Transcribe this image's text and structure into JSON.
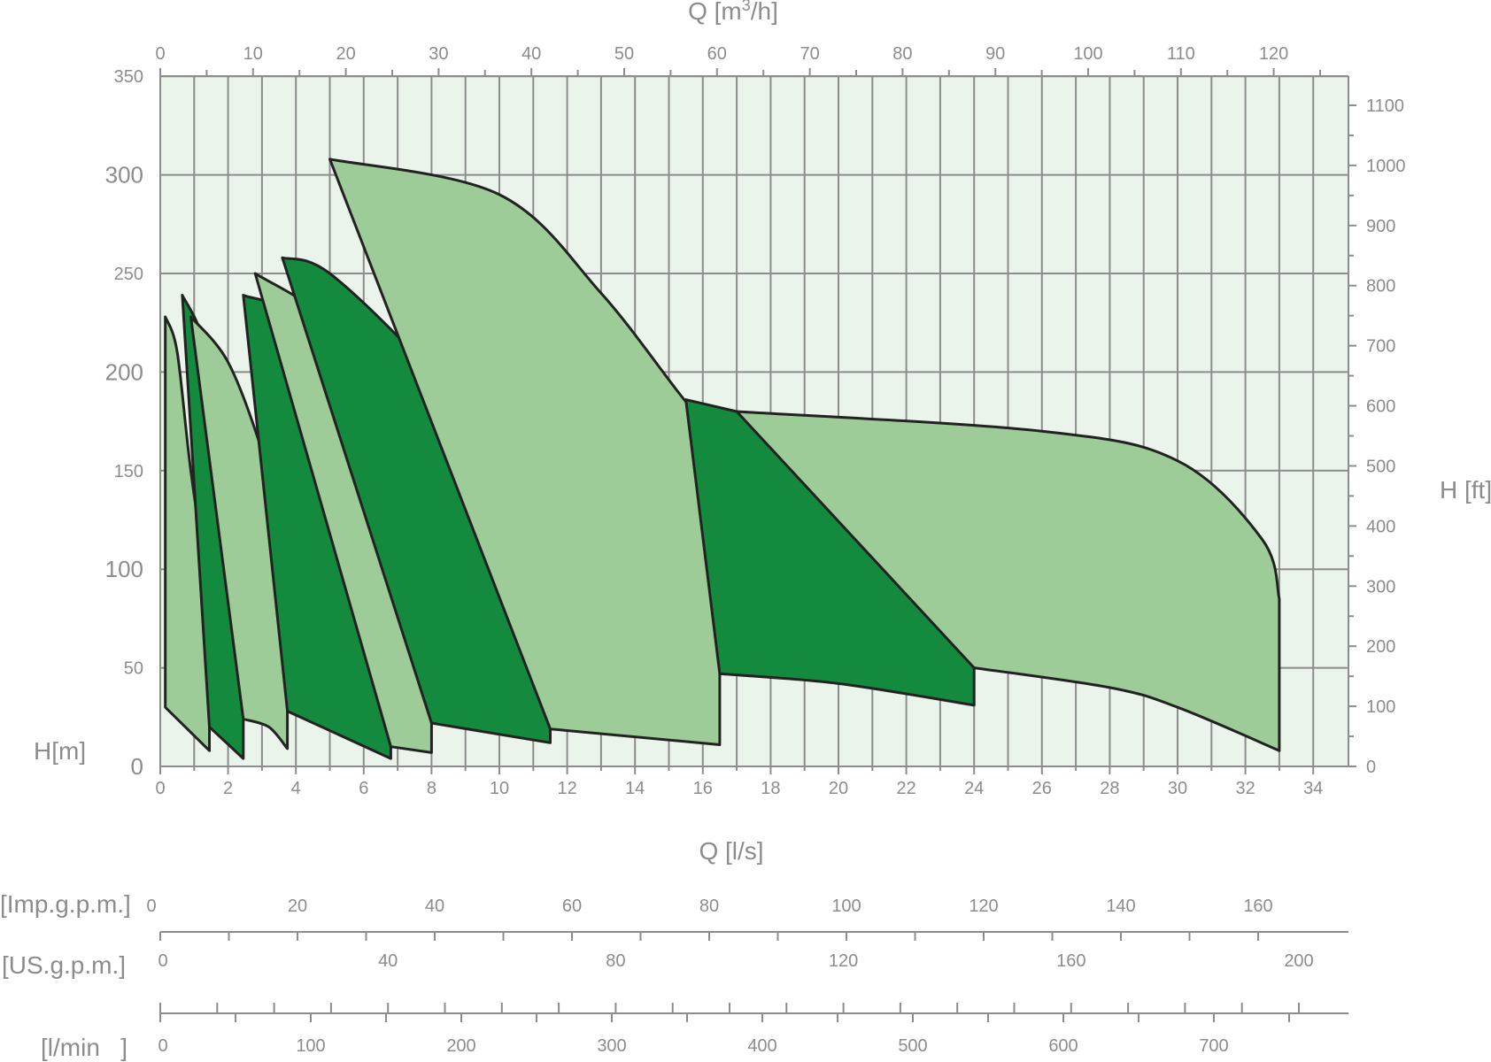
{
  "chart_data": {
    "type": "area",
    "title": "",
    "colors": {
      "plot_background": "#eaf4ea",
      "light_band": "#9dcc98",
      "dark_band": "#148a3e",
      "grid": "#8c8c8c",
      "outline": "#222222",
      "text": "#8c8c8c"
    },
    "grid": true,
    "axes": {
      "x_primary": {
        "label": "Q [l/s]",
        "range": [
          0,
          35
        ],
        "ticks": [
          0,
          2,
          4,
          6,
          8,
          10,
          12,
          14,
          16,
          18,
          20,
          22,
          24,
          26,
          28,
          30,
          32,
          34
        ]
      },
      "x_top": {
        "label": "Q [m3/h]",
        "label_main": "Q [m",
        "label_sup": "3",
        "label_end": "/h]",
        "ticks": [
          0,
          10,
          20,
          30,
          40,
          50,
          60,
          70,
          80,
          90,
          100,
          110,
          120
        ]
      },
      "y_left": {
        "label": "H[m]",
        "range": [
          0,
          350
        ],
        "ticks": [
          0,
          50,
          100,
          150,
          200,
          250,
          300,
          350
        ],
        "large_ticks": [
          0,
          100,
          200,
          300
        ]
      },
      "y_right": {
        "label": "H [ft]",
        "ticks": [
          0,
          100,
          200,
          300,
          400,
          500,
          600,
          700,
          800,
          900,
          1000,
          1100
        ]
      },
      "imp_gpm": {
        "label": "[Imp.g.p.m.]",
        "ticks": [
          0,
          20,
          40,
          60,
          80,
          100,
          120,
          140,
          160
        ]
      },
      "us_gpm": {
        "label": "[US.g.p.m.]",
        "ticks": [
          0,
          40,
          80,
          120,
          160,
          200
        ]
      },
      "l_min": {
        "label": "[l/min   ]",
        "ticks": [
          0,
          100,
          200,
          300,
          400,
          500,
          600,
          700
        ]
      }
    },
    "series": [
      {
        "shade": "light",
        "top": [
          [
            0.15,
            228
          ],
          [
            0.5,
            210
          ],
          [
            0.9,
            150
          ],
          [
            1.45,
            85
          ]
        ],
        "bottom": [
          [
            0.15,
            30
          ],
          [
            1.45,
            8
          ]
        ]
      },
      {
        "shade": "dark",
        "top": [
          [
            0.65,
            239
          ],
          [
            1.3,
            215
          ],
          [
            2.0,
            160
          ],
          [
            2.45,
            110
          ]
        ],
        "bottom": [
          [
            1.45,
            20
          ],
          [
            2.45,
            4
          ]
        ]
      },
      {
        "shade": "light",
        "top": [
          [
            0.9,
            228
          ],
          [
            2.0,
            205
          ],
          [
            3.0,
            160
          ],
          [
            3.75,
            110
          ]
        ],
        "bottom": [
          [
            2.45,
            24
          ],
          [
            3.2,
            20
          ],
          [
            3.75,
            9
          ]
        ]
      },
      {
        "shade": "dark",
        "top": [
          [
            2.45,
            239
          ],
          [
            4.0,
            225
          ],
          [
            6.0,
            160
          ],
          [
            6.8,
            110
          ]
        ],
        "bottom": [
          [
            3.75,
            28
          ],
          [
            6.8,
            4
          ]
        ]
      },
      {
        "shade": "light",
        "top": [
          [
            2.8,
            250
          ],
          [
            5.0,
            225
          ],
          [
            7.0,
            175
          ],
          [
            8.0,
            144
          ]
        ],
        "bottom": [
          [
            6.8,
            10
          ],
          [
            8.0,
            7
          ]
        ]
      },
      {
        "shade": "dark",
        "top": [
          [
            3.6,
            258
          ],
          [
            5.0,
            250
          ],
          [
            8.0,
            200
          ],
          [
            11.5,
            128
          ]
        ],
        "bottom": [
          [
            8.0,
            22
          ],
          [
            11.5,
            12
          ]
        ]
      },
      {
        "shade": "light",
        "top": [
          [
            5.0,
            308
          ],
          [
            10.0,
            290
          ],
          [
            13.0,
            240
          ],
          [
            15.5,
            185
          ],
          [
            16.5,
            168
          ]
        ],
        "bottom": [
          [
            11.5,
            19
          ],
          [
            16.5,
            11
          ]
        ]
      },
      {
        "shade": "dark",
        "top": [
          [
            15.5,
            186
          ],
          [
            17.0,
            180
          ],
          [
            20.0,
            168
          ],
          [
            24.0,
            132
          ]
        ],
        "bottom": [
          [
            16.5,
            47
          ],
          [
            20.0,
            42
          ],
          [
            24.0,
            31
          ]
        ]
      },
      {
        "shade": "light",
        "top": [
          [
            17.0,
            180
          ],
          [
            26.0,
            170
          ],
          [
            30.0,
            155
          ],
          [
            32.5,
            115
          ],
          [
            33.0,
            85
          ]
        ],
        "bottom": [
          [
            24.0,
            50
          ],
          [
            28.0,
            40
          ],
          [
            30.0,
            30
          ],
          [
            33.0,
            8
          ]
        ]
      }
    ]
  }
}
